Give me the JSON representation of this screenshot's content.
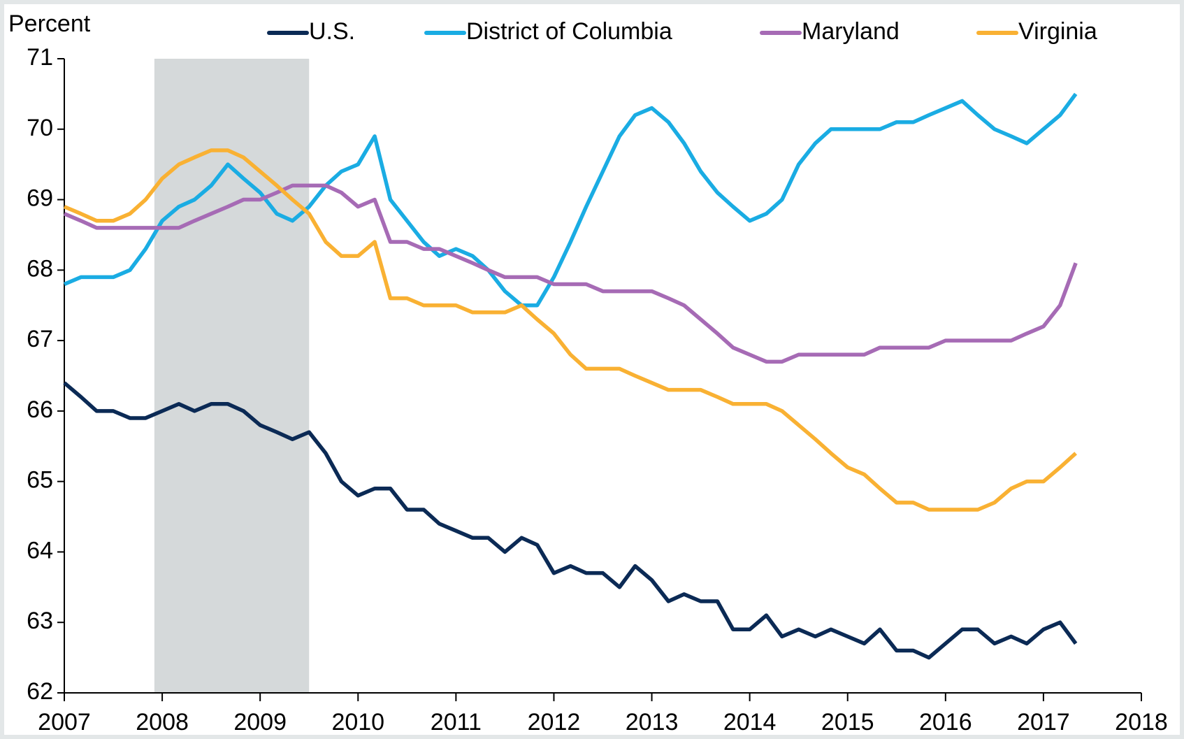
{
  "chart_data": {
    "type": "line",
    "y_label": "Percent",
    "x": [
      2007,
      2007.17,
      2007.33,
      2007.5,
      2007.67,
      2007.83,
      2008,
      2008.17,
      2008.33,
      2008.5,
      2008.67,
      2008.83,
      2009,
      2009.17,
      2009.33,
      2009.5,
      2009.67,
      2009.83,
      2010,
      2010.17,
      2010.33,
      2010.5,
      2010.67,
      2010.83,
      2011,
      2011.17,
      2011.33,
      2011.5,
      2011.67,
      2011.83,
      2012,
      2012.17,
      2012.33,
      2012.5,
      2012.67,
      2012.83,
      2013,
      2013.17,
      2013.33,
      2013.5,
      2013.67,
      2013.83,
      2014,
      2014.17,
      2014.33,
      2014.5,
      2014.67,
      2014.83,
      2015,
      2015.17,
      2015.33,
      2015.5,
      2015.67,
      2015.83,
      2016,
      2016.17,
      2016.33,
      2016.5,
      2016.67,
      2016.83,
      2017,
      2017.17,
      2017.33
    ],
    "series": [
      {
        "name": "U.S.",
        "color": "#0b2a55",
        "values": [
          66.4,
          66.2,
          66.0,
          66.0,
          65.9,
          65.9,
          66.0,
          66.1,
          66.0,
          66.1,
          66.1,
          66.0,
          65.8,
          65.7,
          65.6,
          65.7,
          65.4,
          65.0,
          64.8,
          64.9,
          64.9,
          64.6,
          64.6,
          64.4,
          64.3,
          64.2,
          64.2,
          64.0,
          64.2,
          64.1,
          63.7,
          63.8,
          63.7,
          63.7,
          63.5,
          63.8,
          63.6,
          63.3,
          63.4,
          63.3,
          63.3,
          62.9,
          62.9,
          63.1,
          62.8,
          62.9,
          62.8,
          62.9,
          62.8,
          62.7,
          62.9,
          62.6,
          62.6,
          62.5,
          62.7,
          62.9,
          62.9,
          62.7,
          62.8,
          62.7,
          62.9,
          63.0,
          62.7
        ]
      },
      {
        "name": "District of Columbia",
        "color": "#1aace3",
        "values": [
          67.8,
          67.9,
          67.9,
          67.9,
          68.0,
          68.3,
          68.7,
          68.9,
          69.0,
          69.2,
          69.5,
          69.3,
          69.1,
          68.8,
          68.7,
          68.9,
          69.2,
          69.4,
          69.5,
          69.9,
          69.0,
          68.7,
          68.4,
          68.2,
          68.3,
          68.2,
          68.0,
          67.7,
          67.5,
          67.5,
          67.9,
          68.4,
          68.9,
          69.4,
          69.9,
          70.2,
          70.3,
          70.1,
          69.8,
          69.4,
          69.1,
          68.9,
          68.7,
          68.8,
          69.0,
          69.5,
          69.8,
          70.0,
          70.0,
          70.0,
          70.0,
          70.1,
          70.1,
          70.2,
          70.3,
          70.4,
          70.2,
          70.0,
          69.9,
          69.8,
          70.0,
          70.2,
          70.5
        ]
      },
      {
        "name": "Maryland",
        "color": "#a66bb5",
        "values": [
          68.8,
          68.7,
          68.6,
          68.6,
          68.6,
          68.6,
          68.6,
          68.6,
          68.7,
          68.8,
          68.9,
          69.0,
          69.0,
          69.1,
          69.2,
          69.2,
          69.2,
          69.1,
          68.9,
          69.0,
          68.4,
          68.4,
          68.3,
          68.3,
          68.2,
          68.1,
          68.0,
          67.9,
          67.9,
          67.9,
          67.8,
          67.8,
          67.8,
          67.7,
          67.7,
          67.7,
          67.7,
          67.6,
          67.5,
          67.3,
          67.1,
          66.9,
          66.8,
          66.7,
          66.7,
          66.8,
          66.8,
          66.8,
          66.8,
          66.8,
          66.9,
          66.9,
          66.9,
          66.9,
          67.0,
          67.0,
          67.0,
          67.0,
          67.0,
          67.1,
          67.2,
          67.5,
          68.1
        ]
      },
      {
        "name": "Virginia",
        "color": "#f9b133",
        "values": [
          68.9,
          68.8,
          68.7,
          68.7,
          68.8,
          69.0,
          69.3,
          69.5,
          69.6,
          69.7,
          69.7,
          69.6,
          69.4,
          69.2,
          69.0,
          68.8,
          68.4,
          68.2,
          68.2,
          68.4,
          67.6,
          67.6,
          67.5,
          67.5,
          67.5,
          67.4,
          67.4,
          67.4,
          67.5,
          67.3,
          67.1,
          66.8,
          66.6,
          66.6,
          66.6,
          66.5,
          66.4,
          66.3,
          66.3,
          66.3,
          66.2,
          66.1,
          66.1,
          66.1,
          66.0,
          65.8,
          65.6,
          65.4,
          65.2,
          65.1,
          64.9,
          64.7,
          64.7,
          64.6,
          64.6,
          64.6,
          64.6,
          64.7,
          64.9,
          65.0,
          65.0,
          65.2,
          65.4
        ]
      }
    ],
    "recession": [
      2007.92,
      2009.5
    ],
    "recession_color": "#d5d9da",
    "xlim": [
      2007,
      2018
    ],
    "xticks": [
      2007,
      2008,
      2009,
      2010,
      2011,
      2012,
      2013,
      2014,
      2015,
      2016,
      2017,
      2018
    ],
    "ylim": [
      62,
      71
    ],
    "yticks": [
      62,
      63,
      64,
      65,
      66,
      67,
      68,
      69,
      70,
      71
    ],
    "legend": "top"
  }
}
